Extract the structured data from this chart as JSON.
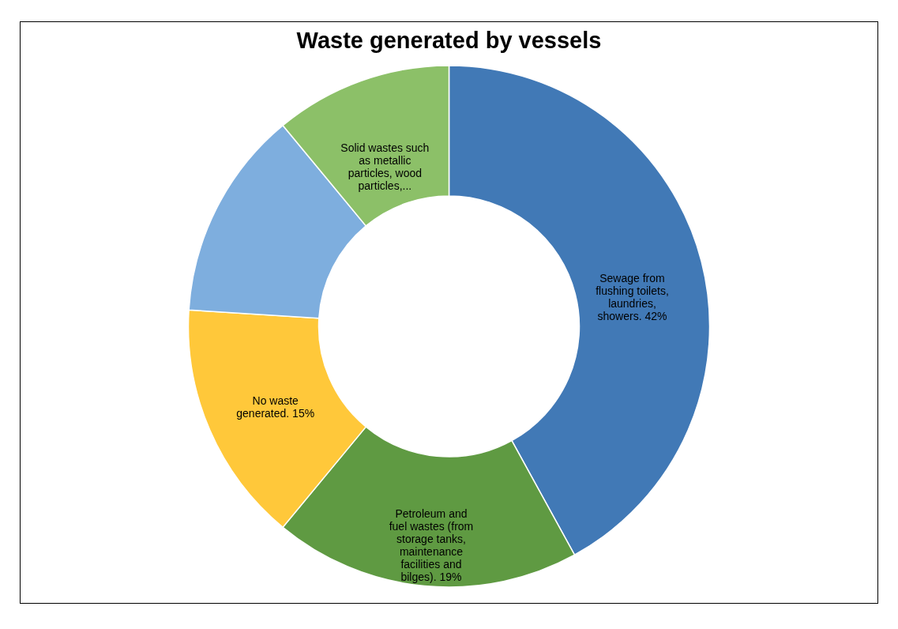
{
  "chart_data": {
    "type": "donut",
    "title": "Waste generated by vessels",
    "categories": [
      "Sewage from flushing toilets, laundries, showers.",
      "Petroleum and fuel wastes (from storage tanks, maintenance facilities and bilges).",
      "No waste generated.",
      null,
      "Solid wastes such as metallic particles, wood particles,..."
    ],
    "values": [
      42,
      19,
      15,
      13,
      11
    ],
    "value_labels": [
      "42%",
      "19%",
      "15%",
      null,
      null
    ],
    "colors": [
      "#4179b6",
      "#5f9a42",
      "#ffc83a",
      "#7eaede",
      "#8cc068"
    ],
    "legend": false
  }
}
